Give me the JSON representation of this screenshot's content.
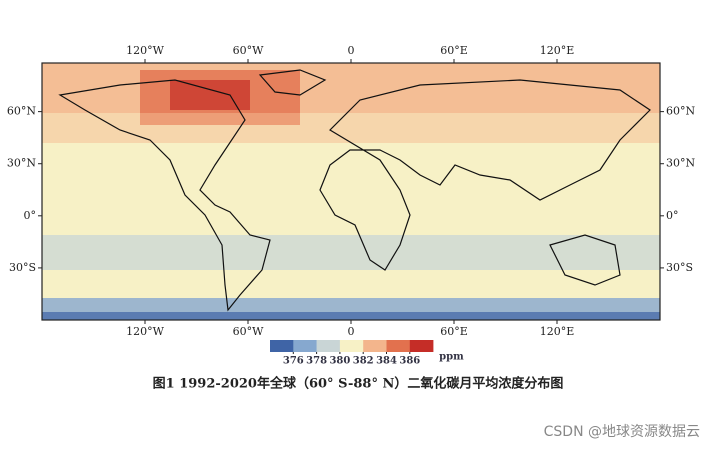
{
  "map": {
    "xlim": [
      -180,
      180
    ],
    "ylim": [
      -60,
      88
    ],
    "xticks": [
      {
        "value": -120,
        "label": "120°W"
      },
      {
        "value": -60,
        "label": "60°W"
      },
      0,
      {
        "value": 60,
        "label": "60°E"
      },
      {
        "value": 120,
        "label": "120°E"
      }
    ],
    "yticks": [
      {
        "value": 60,
        "label": "60°N"
      },
      {
        "value": 30,
        "label": "30°N"
      },
      {
        "value": 0,
        "label": "0°"
      },
      {
        "value": -30,
        "label": "30°S"
      }
    ]
  },
  "colorbar": {
    "ticks": [
      376,
      378,
      380,
      382,
      384,
      386
    ],
    "unit": "ppm",
    "colors": [
      "#3f64a6",
      "#86a8cf",
      "#c9d5d6",
      "#f7f1c6",
      "#f3b58c",
      "#e2714e",
      "#c52d27"
    ]
  },
  "caption": "图1 1992-2020年全球（60° S-88° N）二氧化碳月平均浓度分布图",
  "watermark": "CSDN @地球资源数据云"
}
